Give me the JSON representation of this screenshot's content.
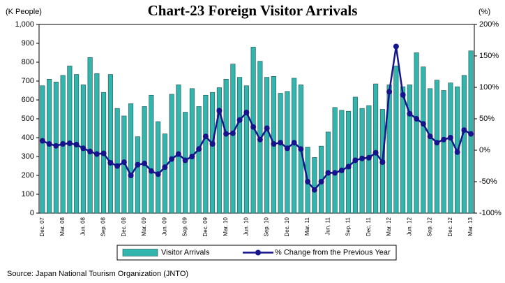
{
  "chart_data": {
    "type": "bar",
    "title": "Chart-23 Foreign Visitor Arrivals",
    "y_axis_label": "(K People)",
    "y2_axis_label": "(%)",
    "source": "Source: Japan National Tourism Organization (JNTO)",
    "categories": [
      "Dec. 07",
      null,
      null,
      "Mar. 08",
      null,
      null,
      "Jun. 08",
      null,
      null,
      "Sep. 08",
      null,
      null,
      "Dec. 08",
      null,
      null,
      "Mar. 09",
      null,
      null,
      "Jun. 09",
      null,
      null,
      "Sep. 09",
      null,
      null,
      "Dec. 09",
      null,
      null,
      "Mar. 10",
      null,
      null,
      "Jun. 10",
      null,
      null,
      "Sep. 10",
      null,
      null,
      "Dec. 10",
      null,
      null,
      "Mar. 11",
      null,
      null,
      "Jun. 11",
      null,
      null,
      "Sep. 11",
      null,
      null,
      "Dec. 11",
      null,
      null,
      "Mar. 12",
      null,
      null,
      "Jun. 12",
      null,
      null,
      "Sep. 12",
      null,
      null,
      "Dec. 12",
      null,
      null,
      "Mar. 13"
    ],
    "series": [
      {
        "name": "Visitor Arrivals",
        "type": "bar",
        "color": "#33b5ad",
        "values": [
          675,
          710,
          695,
          730,
          780,
          735,
          680,
          825,
          740,
          640,
          735,
          555,
          515,
          580,
          405,
          565,
          625,
          485,
          420,
          630,
          680,
          535,
          660,
          565,
          625,
          640,
          665,
          710,
          790,
          720,
          675,
          880,
          805,
          720,
          725,
          635,
          645,
          715,
          680,
          350,
          295,
          355,
          430,
          560,
          545,
          540,
          615,
          555,
          570,
          685,
          550,
          680,
          780,
          670,
          680,
          850,
          775,
          660,
          705,
          650,
          690,
          670,
          730,
          860
        ]
      },
      {
        "name": "% Change from the Previous Year",
        "type": "line",
        "axis": "y2",
        "color": "#14148c",
        "values": [
          15,
          10,
          7,
          10,
          11,
          9,
          3,
          -2,
          -6,
          -5,
          -20,
          -25,
          -19,
          -40,
          -23,
          -21,
          -33,
          -38,
          -27,
          -14,
          -6,
          -16,
          -10,
          2,
          22,
          10,
          63,
          26,
          27,
          48,
          60,
          37,
          17,
          35,
          10,
          12,
          3,
          12,
          2,
          -50,
          -63,
          -50,
          -36,
          -36,
          -32,
          -26,
          -16,
          -13,
          -12,
          -4,
          -19,
          93,
          165,
          88,
          58,
          50,
          42,
          22,
          12,
          17,
          20,
          -3,
          32,
          26
        ]
      }
    ],
    "ylim": [
      0,
      1000
    ],
    "yticks": [
      0,
      100,
      200,
      300,
      400,
      500,
      600,
      700,
      800,
      900,
      {
        "value": 1000,
        "label": "1,000"
      }
    ],
    "y2lim": [
      -100,
      200
    ],
    "y2ticks": [
      {
        "value": -100,
        "label": "-100%"
      },
      {
        "value": -50,
        "label": "-50%"
      },
      {
        "value": 0,
        "label": "0%"
      },
      {
        "value": 50,
        "label": "50%"
      },
      {
        "value": 100,
        "label": "100%"
      },
      {
        "value": 150,
        "label": "150%"
      },
      {
        "value": 200,
        "label": "200%"
      }
    ],
    "grid": false
  }
}
